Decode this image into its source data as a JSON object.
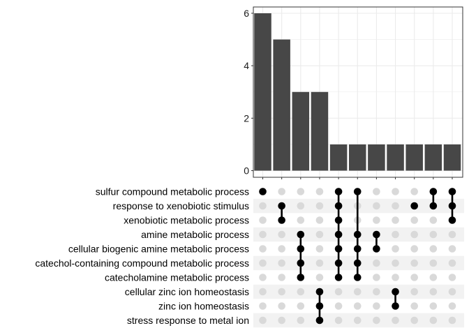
{
  "chart_data": {
    "type": "upset",
    "ylim": [
      0,
      6.3
    ],
    "yticks": [
      "0",
      "2",
      "4",
      "6"
    ],
    "ytick_values": [
      0,
      2,
      4,
      6
    ],
    "sets": [
      "sulfur compound metabolic process",
      "response to xenobiotic stimulus",
      "xenobiotic metabolic process",
      "amine metabolic process",
      "cellular biogenic amine metabolic process",
      "catechol-containing compound metabolic process",
      "catecholamine metabolic process",
      "cellular zinc ion homeostasis",
      "zinc ion homeostasis",
      "stress response to metal ion"
    ],
    "intersections": [
      {
        "size": 6,
        "members": [
          0
        ]
      },
      {
        "size": 5,
        "members": [
          1,
          2
        ]
      },
      {
        "size": 3,
        "members": [
          3,
          4,
          5,
          6
        ]
      },
      {
        "size": 3,
        "members": [
          7,
          8,
          9
        ]
      },
      {
        "size": 1,
        "members": [
          0,
          1,
          2,
          3,
          4,
          5,
          6
        ]
      },
      {
        "size": 1,
        "members": [
          0,
          3,
          4,
          5,
          6
        ]
      },
      {
        "size": 1,
        "members": [
          3,
          4
        ]
      },
      {
        "size": 1,
        "members": [
          7,
          8
        ]
      },
      {
        "size": 1,
        "members": [
          1
        ]
      },
      {
        "size": 1,
        "members": [
          0,
          1
        ]
      },
      {
        "size": 1,
        "members": [
          0,
          1,
          2
        ]
      }
    ]
  },
  "colors": {
    "bar": "#474747",
    "dot_active": "#000000",
    "dot_inactive": "#d9d9d9",
    "grid": "#ebebeb",
    "stripe": "#f2f2f2",
    "panel_border": "#333333"
  }
}
